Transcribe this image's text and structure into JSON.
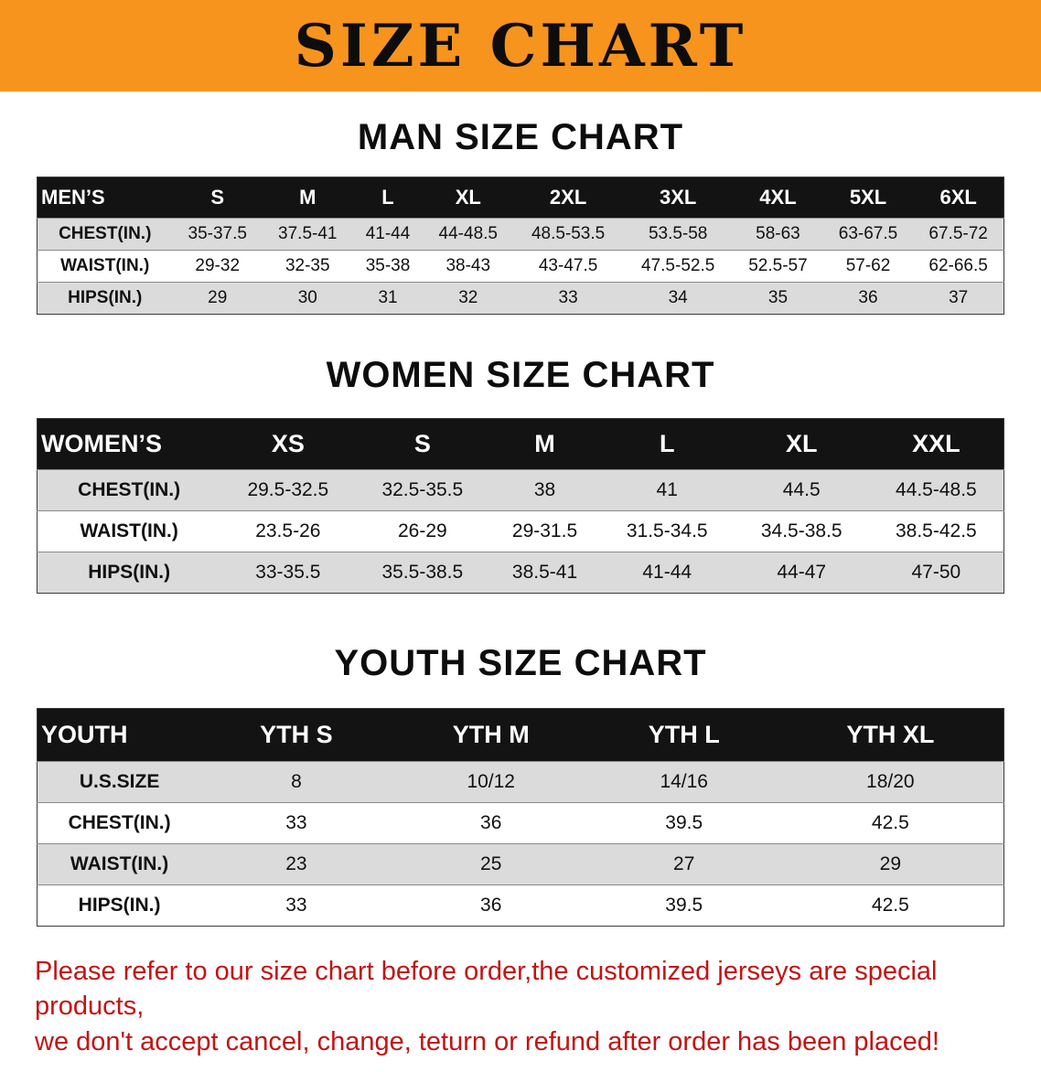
{
  "banner": {
    "title": "SIZE CHART",
    "bg_color": "#F7941D"
  },
  "men": {
    "heading": "MAN SIZE CHART",
    "table": {
      "header": [
        "MEN’S",
        "S",
        "M",
        "L",
        "XL",
        "2XL",
        "3XL",
        "4XL",
        "5XL",
        "6XL"
      ],
      "rows": [
        [
          "CHEST(IN.)",
          "35-37.5",
          "37.5-41",
          "41-44",
          "44-48.5",
          "48.5-53.5",
          "53.5-58",
          "58-63",
          "63-67.5",
          "67.5-72"
        ],
        [
          "WAIST(IN.)",
          "29-32",
          "32-35",
          "35-38",
          "38-43",
          "43-47.5",
          "47.5-52.5",
          "52.5-57",
          "57-62",
          "62-66.5"
        ],
        [
          "HIPS(IN.)",
          "29",
          "30",
          "31",
          "32",
          "33",
          "34",
          "35",
          "36",
          "37"
        ]
      ]
    }
  },
  "women": {
    "heading": "WOMEN SIZE CHART",
    "table": {
      "header": [
        "WOMEN’S",
        "XS",
        "S",
        "M",
        "L",
        "XL",
        "XXL"
      ],
      "rows": [
        [
          "CHEST(IN.)",
          "29.5-32.5",
          "32.5-35.5",
          "38",
          "41",
          "44.5",
          "44.5-48.5"
        ],
        [
          "WAIST(IN.)",
          "23.5-26",
          "26-29",
          "29-31.5",
          "31.5-34.5",
          "34.5-38.5",
          "38.5-42.5"
        ],
        [
          "HIPS(IN.)",
          "33-35.5",
          "35.5-38.5",
          "38.5-41",
          "41-44",
          "44-47",
          "47-50"
        ]
      ]
    }
  },
  "youth": {
    "heading": "YOUTH SIZE CHART",
    "table": {
      "header": [
        "YOUTH",
        "YTH S",
        "YTH M",
        "YTH L",
        "YTH XL"
      ],
      "rows": [
        [
          "U.S.SIZE",
          "8",
          "10/12",
          "14/16",
          "18/20"
        ],
        [
          "CHEST(IN.)",
          "33",
          "36",
          "39.5",
          "42.5"
        ],
        [
          "WAIST(IN.)",
          "23",
          "25",
          "27",
          "29"
        ],
        [
          "HIPS(IN.)",
          "33",
          "36",
          "39.5",
          "42.5"
        ]
      ]
    }
  },
  "disclaimer": {
    "color": "#C21414",
    "lines": [
      "Please refer to our size chart before order,the customized jerseys are special products,",
      "we don't accept cancel, change, teturn or refund after order has been placed!"
    ]
  }
}
